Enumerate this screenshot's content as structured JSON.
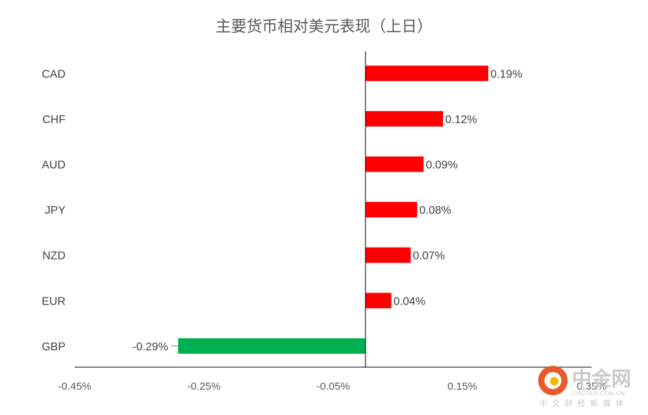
{
  "chart_data": {
    "type": "bar",
    "orientation": "horizontal",
    "title": "主要货币相对美元表现（上日）",
    "categories": [
      "CAD",
      "CHF",
      "AUD",
      "JPY",
      "NZD",
      "EUR",
      "GBP"
    ],
    "values": [
      0.19,
      0.12,
      0.09,
      0.08,
      0.07,
      0.04,
      -0.29
    ],
    "data_labels": [
      "0.19%",
      "0.12%",
      "0.09%",
      "0.08%",
      "0.07%",
      "0.04%",
      "-0.29%"
    ],
    "xlim": [
      -0.45,
      0.35
    ],
    "xticks": [
      -0.45,
      -0.25,
      -0.05,
      0.15,
      0.35
    ],
    "xtick_labels": [
      "-0.45%",
      "-0.25%",
      "-0.05%",
      "0.15%",
      "0.35%"
    ],
    "grid": false,
    "legend": "none",
    "colors": {
      "positive": "#ff0000",
      "negative": "#00b050",
      "axis": "#000000",
      "text": "#404040"
    }
  },
  "watermark": {
    "name": "中金网",
    "url": "CNGOLD.COM.CN",
    "subtitle": "中文财经新媒体"
  }
}
